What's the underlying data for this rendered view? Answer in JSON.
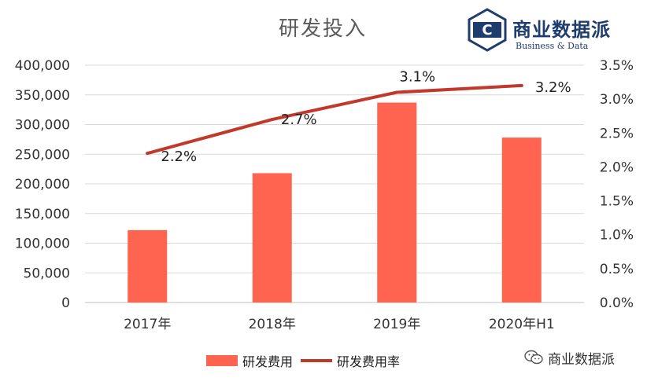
{
  "title": "研发投入",
  "logo": {
    "letter": "C",
    "name": "商业数据派",
    "subtitle": "Business & Data"
  },
  "watermark": {
    "icon": "wechat-icon",
    "text": "商业数据派"
  },
  "colors": {
    "bar": "#ff6450",
    "line": "#c0392b",
    "logo": "#1e3c6e",
    "gridline": "#d9d9d9"
  },
  "chart_data": {
    "type": "bar",
    "categories": [
      "2017年",
      "2018年",
      "2019年",
      "2020年H1"
    ],
    "series": [
      {
        "name": "研发费用",
        "type": "bar",
        "axis": "left",
        "values": [
          122000,
          218000,
          337000,
          278000
        ]
      },
      {
        "name": "研发费用率",
        "type": "line",
        "axis": "right",
        "values": [
          2.2,
          2.7,
          3.1,
          3.2
        ],
        "labels": [
          "2.2%",
          "2.7%",
          "3.1%",
          "3.2%"
        ]
      }
    ],
    "y_left": {
      "min": 0,
      "max": 400000,
      "ticks": [
        "0",
        "50,000",
        "100,000",
        "150,000",
        "200,000",
        "250,000",
        "300,000",
        "350,000",
        "400,000"
      ]
    },
    "y_right": {
      "min": 0,
      "max": 3.5,
      "ticks": [
        "0.0%",
        "0.5%",
        "1.0%",
        "1.5%",
        "2.0%",
        "2.5%",
        "3.0%",
        "3.5%"
      ]
    },
    "grid": true,
    "legend": "bottom"
  }
}
